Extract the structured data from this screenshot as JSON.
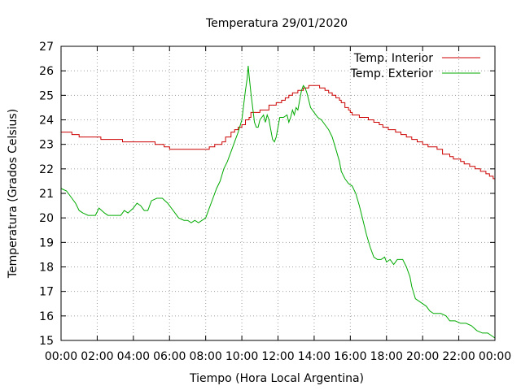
{
  "chart_data": {
    "type": "line",
    "title": "Temperatura 29/01/2020",
    "xlabel": "Tiempo (Hora Local Argentina)",
    "ylabel": "Temperatura (Grados Celsius)",
    "xlim": [
      0,
      24
    ],
    "ylim": [
      15,
      27
    ],
    "x_ticks": [
      0,
      2,
      4,
      6,
      8,
      10,
      12,
      14,
      16,
      18,
      20,
      22,
      24
    ],
    "x_tick_labels": [
      "00:00",
      "02:00",
      "04:00",
      "06:00",
      "08:00",
      "10:00",
      "12:00",
      "14:00",
      "16:00",
      "18:00",
      "20:00",
      "22:00",
      "00:00"
    ],
    "y_ticks": [
      15,
      16,
      17,
      18,
      19,
      20,
      21,
      22,
      23,
      24,
      25,
      26,
      27
    ],
    "grid": true,
    "legend_position": "top-right",
    "series": [
      {
        "name": "Temp. Interior",
        "color": "#cc0000",
        "step": true,
        "points": [
          [
            0,
            23.5
          ],
          [
            0.6,
            23.4
          ],
          [
            1.0,
            23.3
          ],
          [
            2.2,
            23.2
          ],
          [
            3.4,
            23.1
          ],
          [
            5.2,
            23.0
          ],
          [
            5.7,
            22.9
          ],
          [
            6.0,
            22.8
          ],
          [
            8.0,
            22.8
          ],
          [
            8.2,
            22.9
          ],
          [
            8.5,
            23.0
          ],
          [
            8.9,
            23.1
          ],
          [
            9.1,
            23.3
          ],
          [
            9.4,
            23.5
          ],
          [
            9.6,
            23.6
          ],
          [
            9.8,
            23.7
          ],
          [
            10.0,
            23.8
          ],
          [
            10.2,
            24.0
          ],
          [
            10.4,
            24.1
          ],
          [
            10.5,
            24.3
          ],
          [
            11.0,
            24.4
          ],
          [
            11.5,
            24.6
          ],
          [
            11.9,
            24.7
          ],
          [
            12.2,
            24.8
          ],
          [
            12.4,
            24.9
          ],
          [
            12.6,
            25.0
          ],
          [
            12.8,
            25.1
          ],
          [
            13.1,
            25.2
          ],
          [
            13.4,
            25.3
          ],
          [
            13.7,
            25.4
          ],
          [
            14.1,
            25.4
          ],
          [
            14.3,
            25.3
          ],
          [
            14.6,
            25.2
          ],
          [
            14.8,
            25.1
          ],
          [
            15.0,
            25.0
          ],
          [
            15.2,
            24.9
          ],
          [
            15.4,
            24.8
          ],
          [
            15.5,
            24.7
          ],
          [
            15.7,
            24.5
          ],
          [
            15.9,
            24.4
          ],
          [
            16.0,
            24.3
          ],
          [
            16.1,
            24.2
          ],
          [
            16.5,
            24.1
          ],
          [
            17.0,
            24.0
          ],
          [
            17.3,
            23.9
          ],
          [
            17.6,
            23.8
          ],
          [
            17.8,
            23.7
          ],
          [
            18.1,
            23.6
          ],
          [
            18.5,
            23.5
          ],
          [
            18.8,
            23.4
          ],
          [
            19.1,
            23.3
          ],
          [
            19.4,
            23.2
          ],
          [
            19.7,
            23.1
          ],
          [
            20.0,
            23.0
          ],
          [
            20.3,
            22.9
          ],
          [
            20.8,
            22.8
          ],
          [
            21.1,
            22.6
          ],
          [
            21.5,
            22.5
          ],
          [
            21.7,
            22.4
          ],
          [
            22.1,
            22.3
          ],
          [
            22.3,
            22.2
          ],
          [
            22.6,
            22.1
          ],
          [
            22.9,
            22.0
          ],
          [
            23.2,
            21.9
          ],
          [
            23.5,
            21.8
          ],
          [
            23.7,
            21.7
          ],
          [
            23.9,
            21.6
          ],
          [
            24.0,
            21.6
          ]
        ]
      },
      {
        "name": "Temp. Exterior",
        "color": "#00aa00",
        "step": false,
        "points": [
          [
            0,
            21.2
          ],
          [
            0.3,
            21.1
          ],
          [
            0.5,
            20.9
          ],
          [
            0.8,
            20.6
          ],
          [
            1.0,
            20.3
          ],
          [
            1.2,
            20.2
          ],
          [
            1.5,
            20.1
          ],
          [
            1.9,
            20.1
          ],
          [
            2.1,
            20.4
          ],
          [
            2.4,
            20.2
          ],
          [
            2.6,
            20.1
          ],
          [
            3.0,
            20.1
          ],
          [
            3.3,
            20.1
          ],
          [
            3.5,
            20.3
          ],
          [
            3.7,
            20.2
          ],
          [
            4.0,
            20.4
          ],
          [
            4.2,
            20.6
          ],
          [
            4.4,
            20.5
          ],
          [
            4.6,
            20.3
          ],
          [
            4.8,
            20.3
          ],
          [
            5.0,
            20.7
          ],
          [
            5.3,
            20.8
          ],
          [
            5.6,
            20.8
          ],
          [
            5.9,
            20.6
          ],
          [
            6.2,
            20.3
          ],
          [
            6.5,
            20.0
          ],
          [
            6.8,
            19.9
          ],
          [
            7.0,
            19.9
          ],
          [
            7.2,
            19.8
          ],
          [
            7.4,
            19.9
          ],
          [
            7.6,
            19.8
          ],
          [
            7.8,
            19.9
          ],
          [
            8.0,
            20.0
          ],
          [
            8.2,
            20.4
          ],
          [
            8.4,
            20.8
          ],
          [
            8.6,
            21.2
          ],
          [
            8.8,
            21.5
          ],
          [
            9.0,
            22.0
          ],
          [
            9.2,
            22.3
          ],
          [
            9.4,
            22.7
          ],
          [
            9.6,
            23.1
          ],
          [
            9.8,
            23.5
          ],
          [
            10.0,
            24.0
          ],
          [
            10.1,
            24.6
          ],
          [
            10.2,
            25.2
          ],
          [
            10.3,
            25.7
          ],
          [
            10.35,
            26.2
          ],
          [
            10.4,
            25.8
          ],
          [
            10.5,
            25.1
          ],
          [
            10.6,
            24.5
          ],
          [
            10.7,
            23.9
          ],
          [
            10.8,
            23.7
          ],
          [
            10.9,
            23.7
          ],
          [
            11.0,
            24.0
          ],
          [
            11.1,
            24.1
          ],
          [
            11.2,
            24.2
          ],
          [
            11.3,
            23.9
          ],
          [
            11.4,
            24.2
          ],
          [
            11.5,
            24.0
          ],
          [
            11.6,
            23.6
          ],
          [
            11.7,
            23.2
          ],
          [
            11.8,
            23.1
          ],
          [
            11.9,
            23.3
          ],
          [
            12.0,
            23.7
          ],
          [
            12.1,
            24.1
          ],
          [
            12.3,
            24.1
          ],
          [
            12.5,
            24.2
          ],
          [
            12.6,
            23.9
          ],
          [
            12.7,
            24.1
          ],
          [
            12.8,
            24.4
          ],
          [
            12.9,
            24.2
          ],
          [
            13.0,
            24.5
          ],
          [
            13.1,
            24.4
          ],
          [
            13.2,
            24.8
          ],
          [
            13.3,
            25.2
          ],
          [
            13.4,
            25.4
          ],
          [
            13.5,
            25.3
          ],
          [
            13.6,
            25.1
          ],
          [
            13.7,
            24.8
          ],
          [
            13.8,
            24.5
          ],
          [
            14.0,
            24.3
          ],
          [
            14.2,
            24.1
          ],
          [
            14.4,
            24.0
          ],
          [
            14.6,
            23.8
          ],
          [
            14.8,
            23.6
          ],
          [
            15.0,
            23.3
          ],
          [
            15.2,
            22.8
          ],
          [
            15.4,
            22.3
          ],
          [
            15.5,
            21.9
          ],
          [
            15.7,
            21.6
          ],
          [
            15.9,
            21.4
          ],
          [
            16.1,
            21.3
          ],
          [
            16.3,
            21.0
          ],
          [
            16.5,
            20.5
          ],
          [
            16.7,
            19.9
          ],
          [
            16.9,
            19.3
          ],
          [
            17.1,
            18.8
          ],
          [
            17.3,
            18.4
          ],
          [
            17.5,
            18.3
          ],
          [
            17.7,
            18.3
          ],
          [
            17.9,
            18.4
          ],
          [
            18.0,
            18.2
          ],
          [
            18.2,
            18.3
          ],
          [
            18.4,
            18.1
          ],
          [
            18.6,
            18.3
          ],
          [
            18.9,
            18.3
          ],
          [
            19.1,
            18.0
          ],
          [
            19.3,
            17.6
          ],
          [
            19.4,
            17.2
          ],
          [
            19.6,
            16.7
          ],
          [
            19.8,
            16.6
          ],
          [
            20.0,
            16.5
          ],
          [
            20.2,
            16.4
          ],
          [
            20.4,
            16.2
          ],
          [
            20.6,
            16.1
          ],
          [
            21.0,
            16.1
          ],
          [
            21.3,
            16.0
          ],
          [
            21.5,
            15.8
          ],
          [
            21.8,
            15.8
          ],
          [
            22.1,
            15.7
          ],
          [
            22.4,
            15.7
          ],
          [
            22.7,
            15.6
          ],
          [
            23.0,
            15.4
          ],
          [
            23.3,
            15.3
          ],
          [
            23.6,
            15.3
          ],
          [
            23.8,
            15.2
          ],
          [
            24.0,
            15.1
          ]
        ]
      }
    ]
  }
}
